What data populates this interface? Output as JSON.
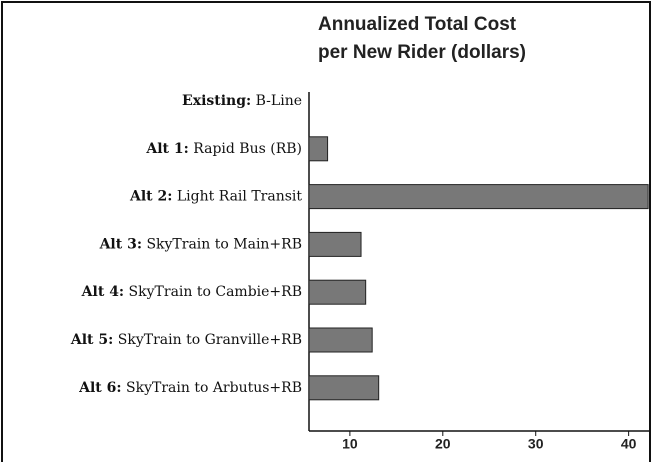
{
  "chart_data": {
    "type": "hbar",
    "title": [
      "Annualized Total Cost",
      "per New Rider (dollars)"
    ],
    "categories": [
      "Existing: B-Line",
      "Alt 1: Rapid Bus (RB)",
      "Alt 2: Light Rail Transit",
      "Alt 3: SkyTrain to Main+RB",
      "Alt 4: SkyTrain to Cambie+RB",
      "Alt 5: SkyTrain to Granville+RB",
      "Alt 6: SkyTrain to Arbutus+RB"
    ],
    "values": [
      null,
      7.6,
      42.1,
      11.2,
      11.7,
      12.4,
      13.1
    ],
    "color": "#787878",
    "xlim": [
      5.6,
      42.3
    ],
    "xticks": [
      10,
      20,
      30,
      40
    ]
  }
}
